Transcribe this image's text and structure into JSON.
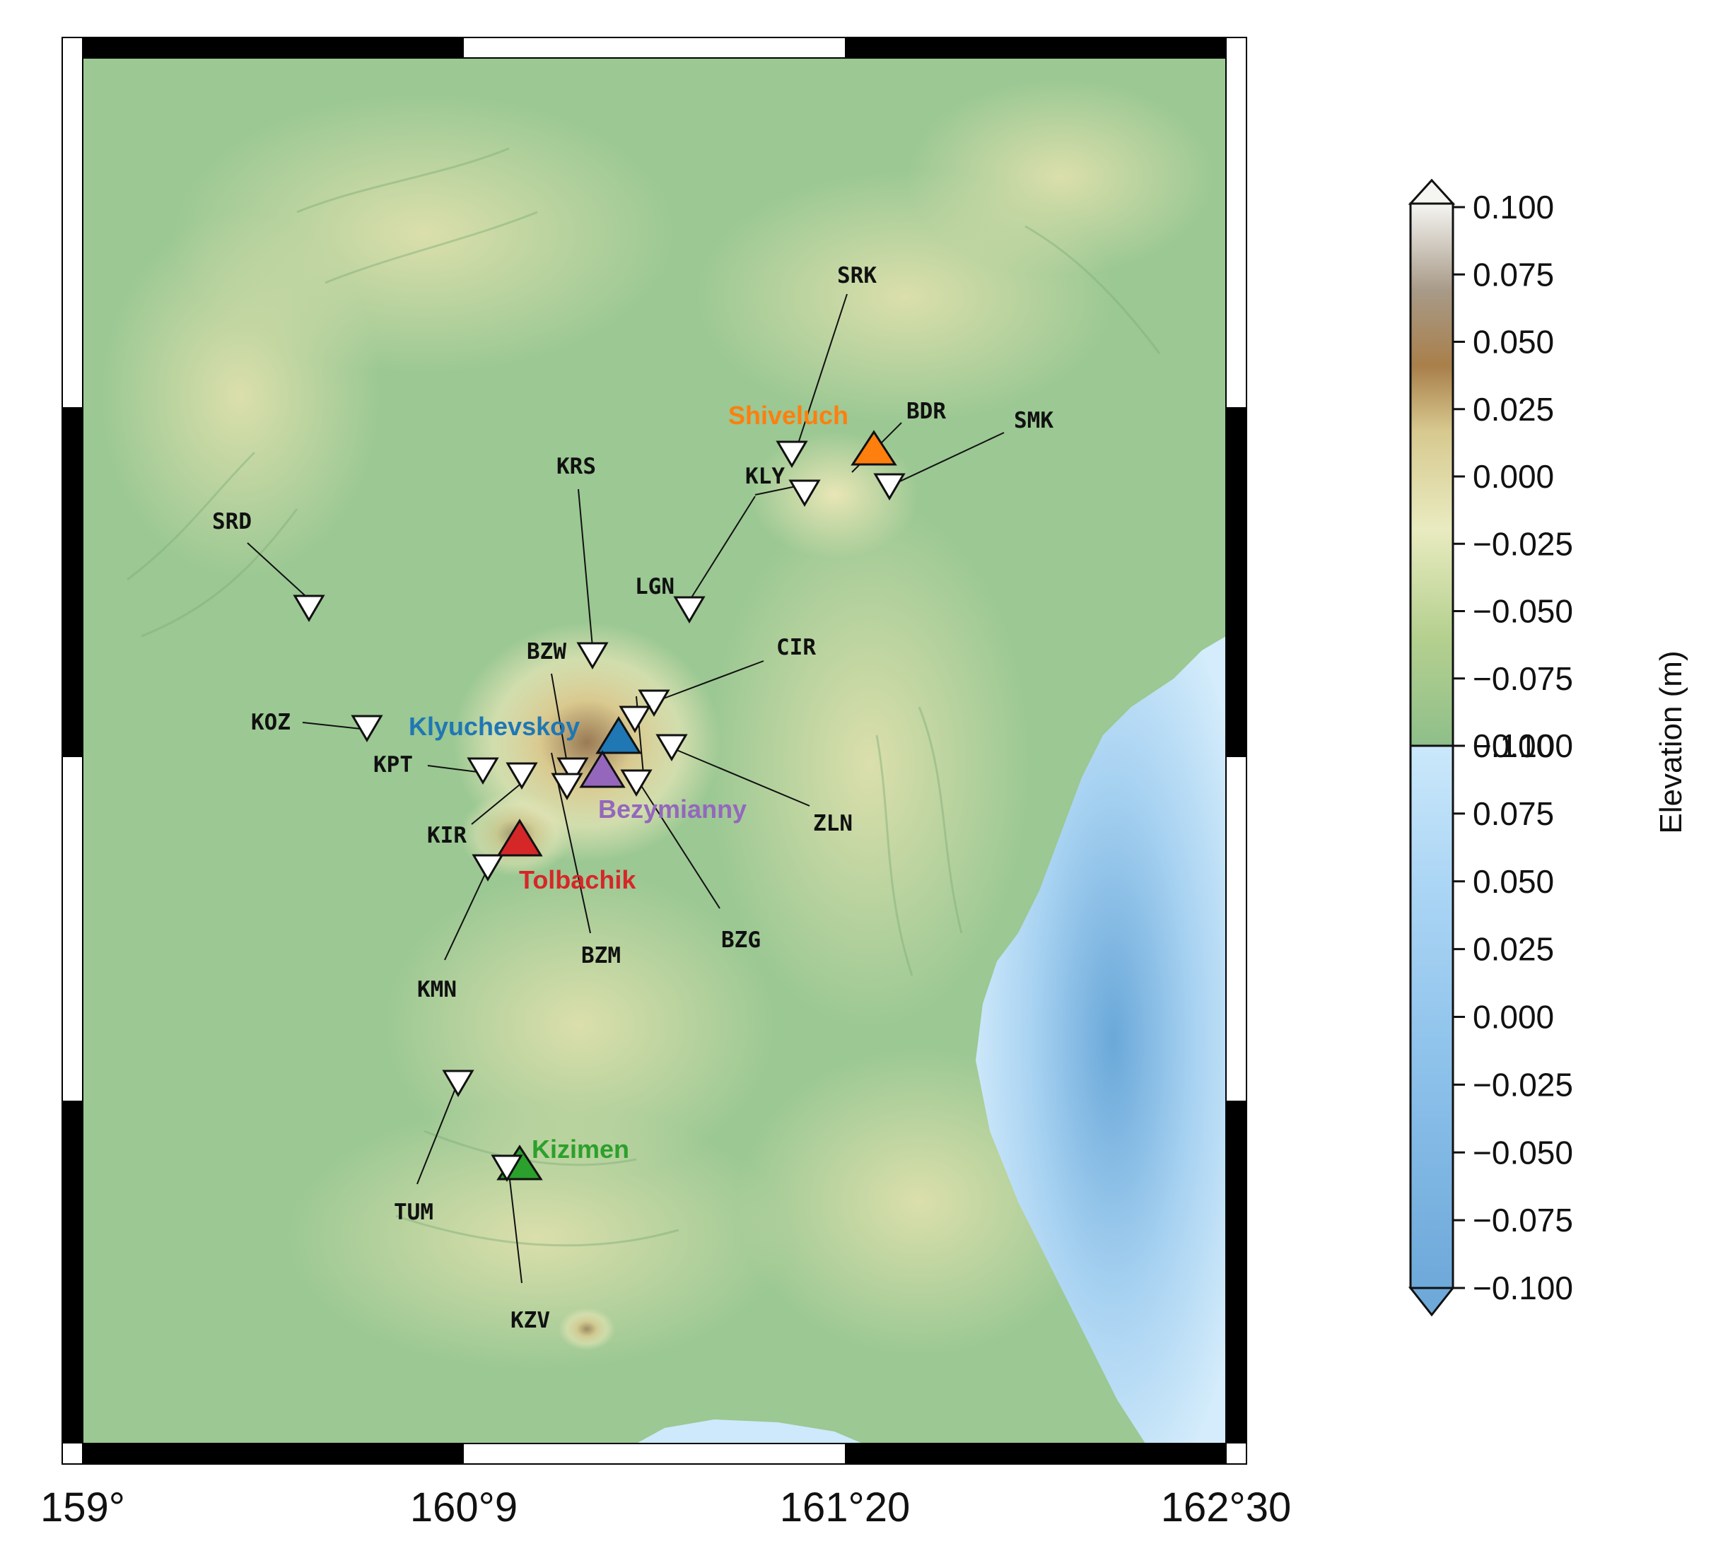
{
  "map": {
    "x_tick_labels": [
      "159°",
      "160°9",
      "161°20",
      "162°30"
    ]
  },
  "volcanoes": [
    {
      "name": "Shiveluch",
      "color": "#ff7f0e"
    },
    {
      "name": "Klyuchevskoy",
      "color": "#1f77b4"
    },
    {
      "name": "Bezymianny",
      "color": "#9467bd"
    },
    {
      "name": "Tolbachik",
      "color": "#d62728"
    },
    {
      "name": "Kizimen",
      "color": "#2ca02c"
    }
  ],
  "stations": [
    "SRK",
    "BDR",
    "SMK",
    "KLY",
    "KRS",
    "SRD",
    "LGN",
    "BZW",
    "CIR",
    "KOZ",
    "KPT",
    "KIR",
    "ZLN",
    "BZG",
    "BZM",
    "KMN",
    "TUM",
    "KZV"
  ],
  "colorbar": {
    "label": "Elevation (m)",
    "upper_ticks": [
      "0.100",
      "0.075",
      "0.050",
      "0.025",
      "0.000",
      "−0.025",
      "−0.050",
      "−0.075",
      "−0.100"
    ],
    "lower_ticks": [
      "0.100",
      "0.075",
      "0.050",
      "0.025",
      "0.000",
      "−0.025",
      "−0.050",
      "−0.075",
      "−0.100"
    ],
    "land_colors": [
      "#8fbf8a",
      "#b5d08f",
      "#e9ebc0",
      "#d7c98f",
      "#a97f4a",
      "#a89a88",
      "#f5f5f2"
    ],
    "sea_colors": [
      "#6ea9da",
      "#8cc1ea",
      "#acd6f5",
      "#cbe8fb"
    ]
  }
}
